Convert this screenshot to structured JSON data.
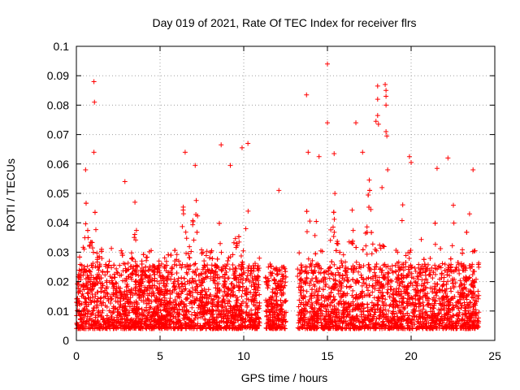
{
  "chart_data": {
    "type": "scatter",
    "title": "Day 019 of 2021, Rate Of TEC Index for receiver flrs",
    "xlabel": "GPS time / hours",
    "ylabel": "ROTI / TECUs",
    "xlim": [
      0,
      25
    ],
    "ylim": [
      0,
      0.1
    ],
    "xticks": [
      0,
      5,
      10,
      15,
      20,
      25
    ],
    "yticks": [
      0,
      0.01,
      0.02,
      0.03,
      0.04,
      0.05,
      0.06,
      0.07,
      0.08,
      0.09,
      0.1
    ],
    "xtick_labels": [
      "0",
      "5",
      "10",
      "15",
      "20",
      "25"
    ],
    "ytick_labels": [
      "0",
      "0.01",
      "0.02",
      "0.03",
      "0.04",
      "0.05",
      "0.06",
      "0.07",
      "0.08",
      "0.09",
      "0.1"
    ],
    "grid": true,
    "marker": "plus",
    "color": "#ff0000",
    "data_gaps_hours": [
      [
        10.95,
        11.3
      ],
      [
        12.55,
        13.2
      ]
    ],
    "points": [
      [
        1.05,
        0.088
      ],
      [
        1.08,
        0.081
      ],
      [
        1.05,
        0.064
      ],
      [
        15.0,
        0.094
      ],
      [
        13.75,
        0.0835
      ],
      [
        15.0,
        0.074
      ],
      [
        18.0,
        0.0865
      ],
      [
        18.45,
        0.087
      ],
      [
        18.5,
        0.085
      ],
      [
        18.5,
        0.083
      ],
      [
        18.0,
        0.082
      ],
      [
        18.5,
        0.08
      ],
      [
        18.0,
        0.0765
      ],
      [
        17.9,
        0.0745
      ],
      [
        18.05,
        0.0735
      ],
      [
        16.7,
        0.074
      ],
      [
        18.5,
        0.071
      ],
      [
        18.55,
        0.0695
      ],
      [
        17.1,
        0.064
      ],
      [
        14.5,
        0.0625
      ],
      [
        15.4,
        0.0635
      ],
      [
        13.85,
        0.064
      ],
      [
        6.5,
        0.064
      ],
      [
        10.25,
        0.067
      ],
      [
        9.9,
        0.0655
      ],
      [
        8.65,
        0.0665
      ],
      [
        19.9,
        0.0625
      ],
      [
        20.0,
        0.0605
      ],
      [
        22.2,
        0.062
      ],
      [
        21.55,
        0.0585
      ],
      [
        23.7,
        0.058
      ],
      [
        0.55,
        0.058
      ],
      [
        9.2,
        0.0595
      ],
      [
        7.1,
        0.0595
      ],
      [
        12.1,
        0.051
      ],
      [
        3.5,
        0.047
      ],
      [
        2.9,
        0.054
      ],
      [
        18.6,
        0.058
      ]
    ]
  }
}
